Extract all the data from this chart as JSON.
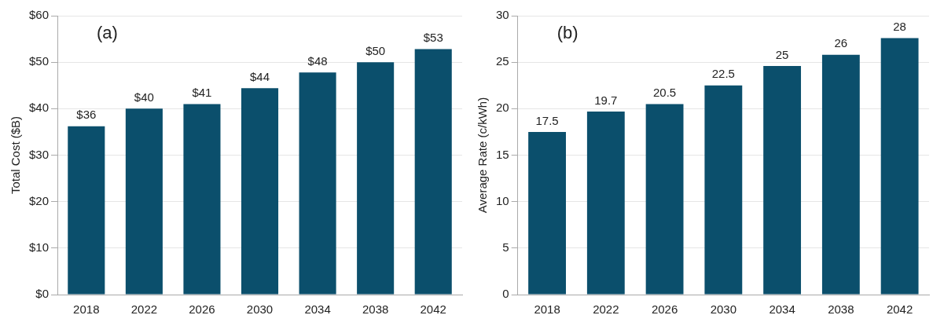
{
  "chart_data": [
    {
      "type": "bar",
      "annotations": [
        "(a)"
      ],
      "ylabel": "Total Cost ($B)",
      "categories": [
        "2018",
        "2022",
        "2026",
        "2030",
        "2034",
        "2038",
        "2042"
      ],
      "values": [
        36.2,
        40,
        41,
        44.4,
        47.8,
        50,
        52.8
      ],
      "value_labels": [
        "$36",
        "$40",
        "$41",
        "$44",
        "$48",
        "$50",
        "$53"
      ],
      "color": "#0b4f6c",
      "ylim": [
        0,
        60
      ],
      "yticks": [
        {
          "value": 0,
          "label": "$0"
        },
        {
          "value": 10,
          "label": "$10"
        },
        {
          "value": 20,
          "label": "$20"
        },
        {
          "value": 30,
          "label": "$30"
        },
        {
          "value": 40,
          "label": "$40"
        },
        {
          "value": 50,
          "label": "$50"
        },
        {
          "value": 60,
          "label": "$60"
        }
      ],
      "grid": "y",
      "legend": false
    },
    {
      "type": "bar",
      "annotations": [
        "(b)"
      ],
      "ylabel": "Average Rate (c/kWh)",
      "categories": [
        "2018",
        "2022",
        "2026",
        "2030",
        "2034",
        "2038",
        "2042"
      ],
      "values": [
        17.5,
        19.7,
        20.5,
        22.5,
        24.6,
        25.8,
        27.6
      ],
      "value_labels": [
        "17.5",
        "19.7",
        "20.5",
        "22.5",
        "25",
        "26",
        "28"
      ],
      "color": "#0b4f6c",
      "ylim": [
        0,
        30
      ],
      "yticks": [
        0,
        5,
        10,
        15,
        20,
        25,
        30
      ],
      "grid": "y",
      "legend": false
    }
  ]
}
